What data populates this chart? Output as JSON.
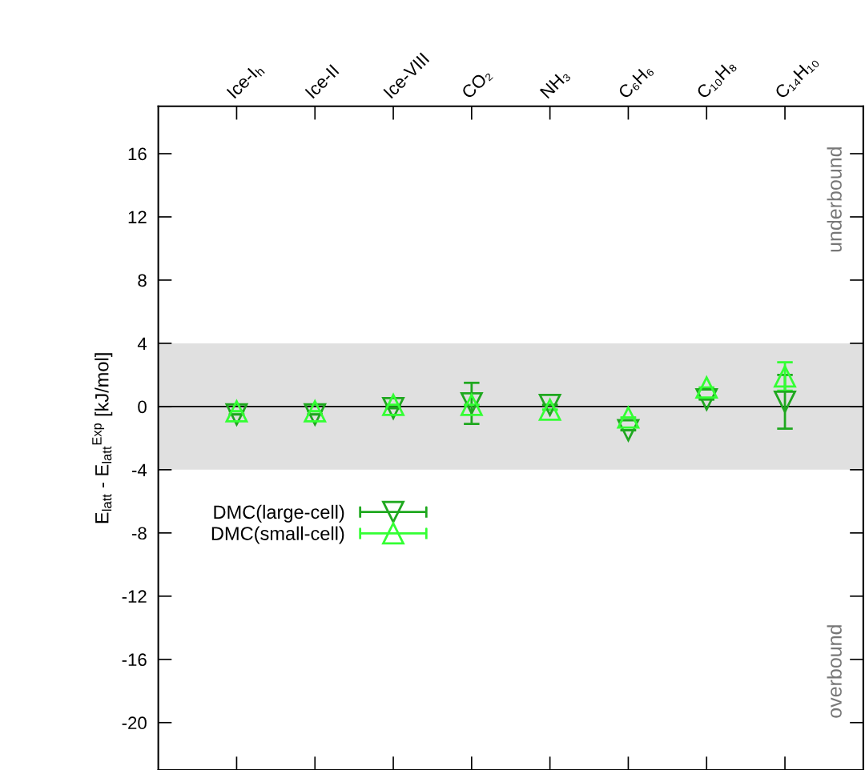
{
  "chart_data": {
    "type": "scatter",
    "ylabel": "E$_{latt}$ - E$_{latt}$$^{Exp}$ [kJ/mol]",
    "categories": [
      "Ice-I$_{h}$",
      "Ice-II",
      "Ice-VIII",
      "CO₂",
      "NH₃",
      "C₆H₆",
      "C₁₀H₈",
      "C₁₄H₁₀"
    ],
    "series": [
      {
        "name": "DMC(large-cell)",
        "color": "#1fa81f",
        "marker": "triangle_down",
        "values": [
          -0.5,
          -0.5,
          -0.1,
          0.2,
          0.1,
          -1.5,
          0.45,
          0.3
        ],
        "errors": [
          null,
          null,
          null,
          1.3,
          null,
          null,
          null,
          1.7
        ]
      },
      {
        "name": "DMC(small-cell)",
        "color": "#33ff33",
        "marker": "triangle",
        "values": [
          -0.3,
          -0.3,
          0.1,
          0.1,
          -0.2,
          -0.7,
          1.2,
          1.9
        ],
        "errors": [
          null,
          null,
          null,
          null,
          null,
          null,
          null,
          0.9
        ]
      }
    ],
    "ylim": [
      -23,
      19
    ],
    "yticks": [
      -20,
      -16,
      -12,
      -8,
      -4,
      0,
      4,
      8,
      12,
      16
    ],
    "bands": [
      {
        "axis": "y",
        "from": -4,
        "to": 4,
        "color": "#e0e0e0"
      }
    ],
    "ref_lines": [
      {
        "axis": "y",
        "value": 0,
        "color": "#000000"
      }
    ],
    "annotations": [
      "underbound",
      "overbound"
    ],
    "tick_labels": "y",
    "grid": false,
    "legend": "left"
  }
}
